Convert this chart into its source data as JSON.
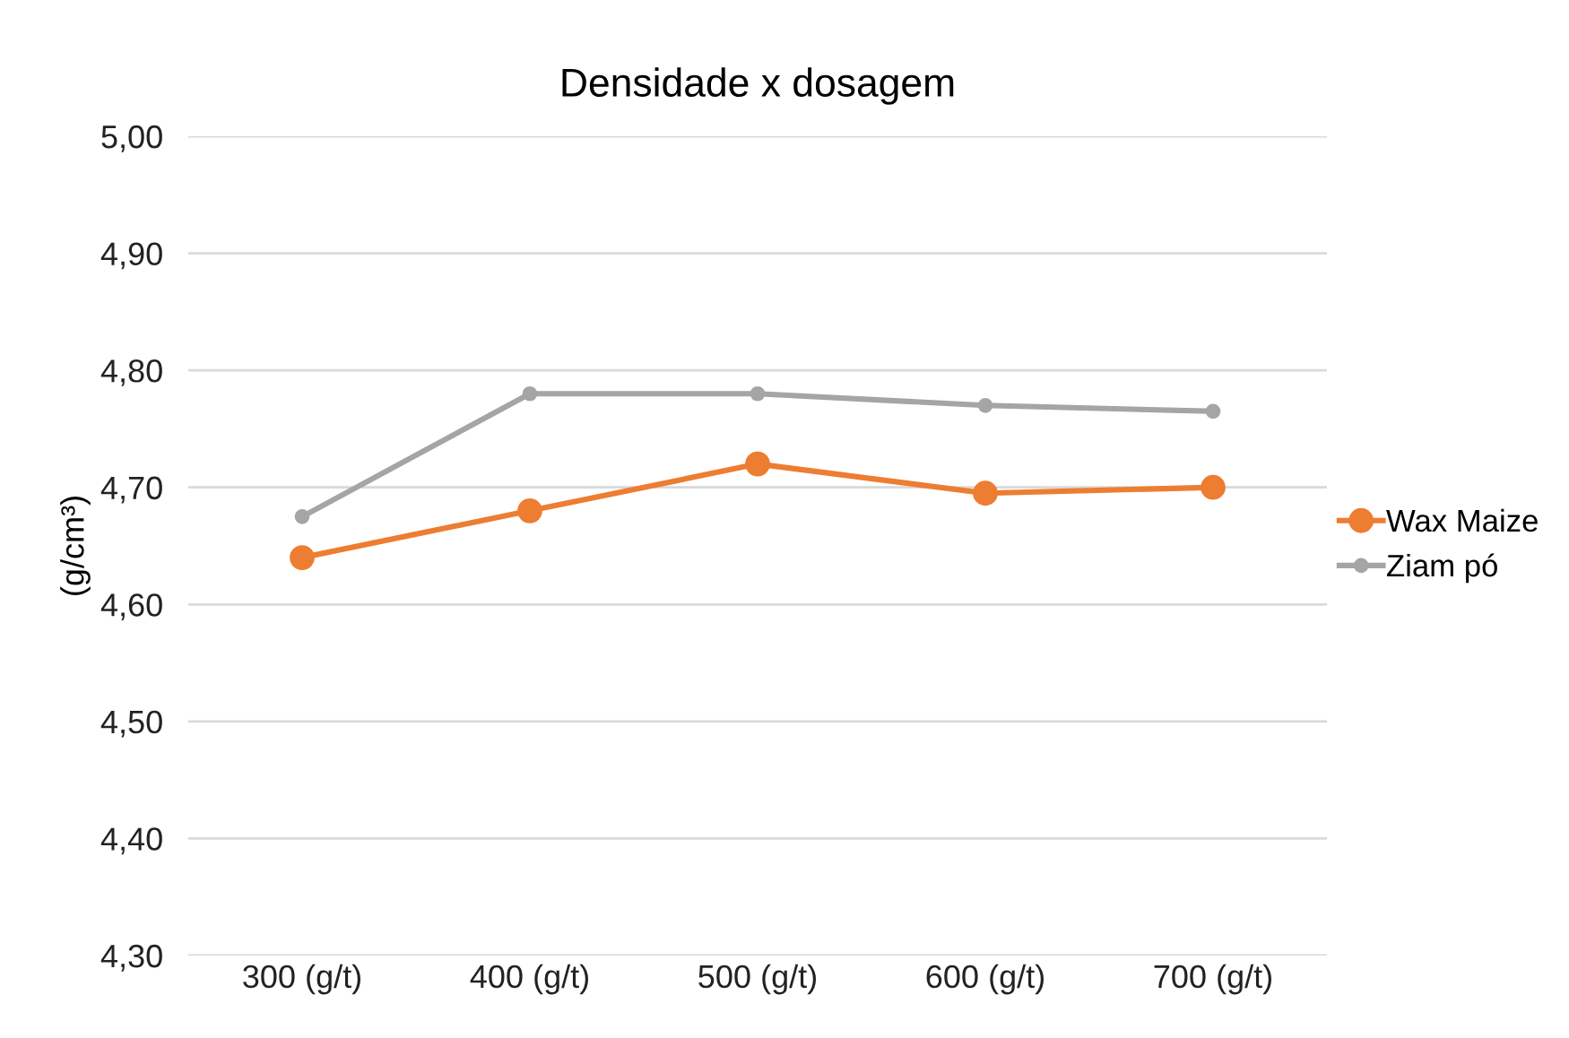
{
  "chart_data": {
    "type": "line",
    "title": "Densidade x dosagem",
    "ylabel": "(g/cm³)",
    "categories": [
      "300 (g/t)",
      "400 (g/t)",
      "500 (g/t)",
      "600 (g/t)",
      "700 (g/t)"
    ],
    "series": [
      {
        "name": "Wax Maize",
        "color": "#ed7d31",
        "values": [
          4.64,
          4.68,
          4.72,
          4.695,
          4.7
        ],
        "marker": "circle"
      },
      {
        "name": "Ziam pó",
        "color": "#a5a5a5",
        "values": [
          4.675,
          4.78,
          4.78,
          4.77,
          4.765
        ],
        "marker": "circle"
      }
    ],
    "ylim": [
      4.3,
      5.0
    ],
    "yticks": [
      {
        "value": 4.3,
        "label": "4,30"
      },
      {
        "value": 4.4,
        "label": "4,40"
      },
      {
        "value": 4.5,
        "label": "4,50"
      },
      {
        "value": 4.6,
        "label": "4,60"
      },
      {
        "value": 4.7,
        "label": "4,70"
      },
      {
        "value": 4.8,
        "label": "4,80"
      },
      {
        "value": 4.9,
        "label": "4,90"
      },
      {
        "value": 5.0,
        "label": "5,00"
      }
    ],
    "grid": "y",
    "legend": "right",
    "line_style": "solid"
  }
}
